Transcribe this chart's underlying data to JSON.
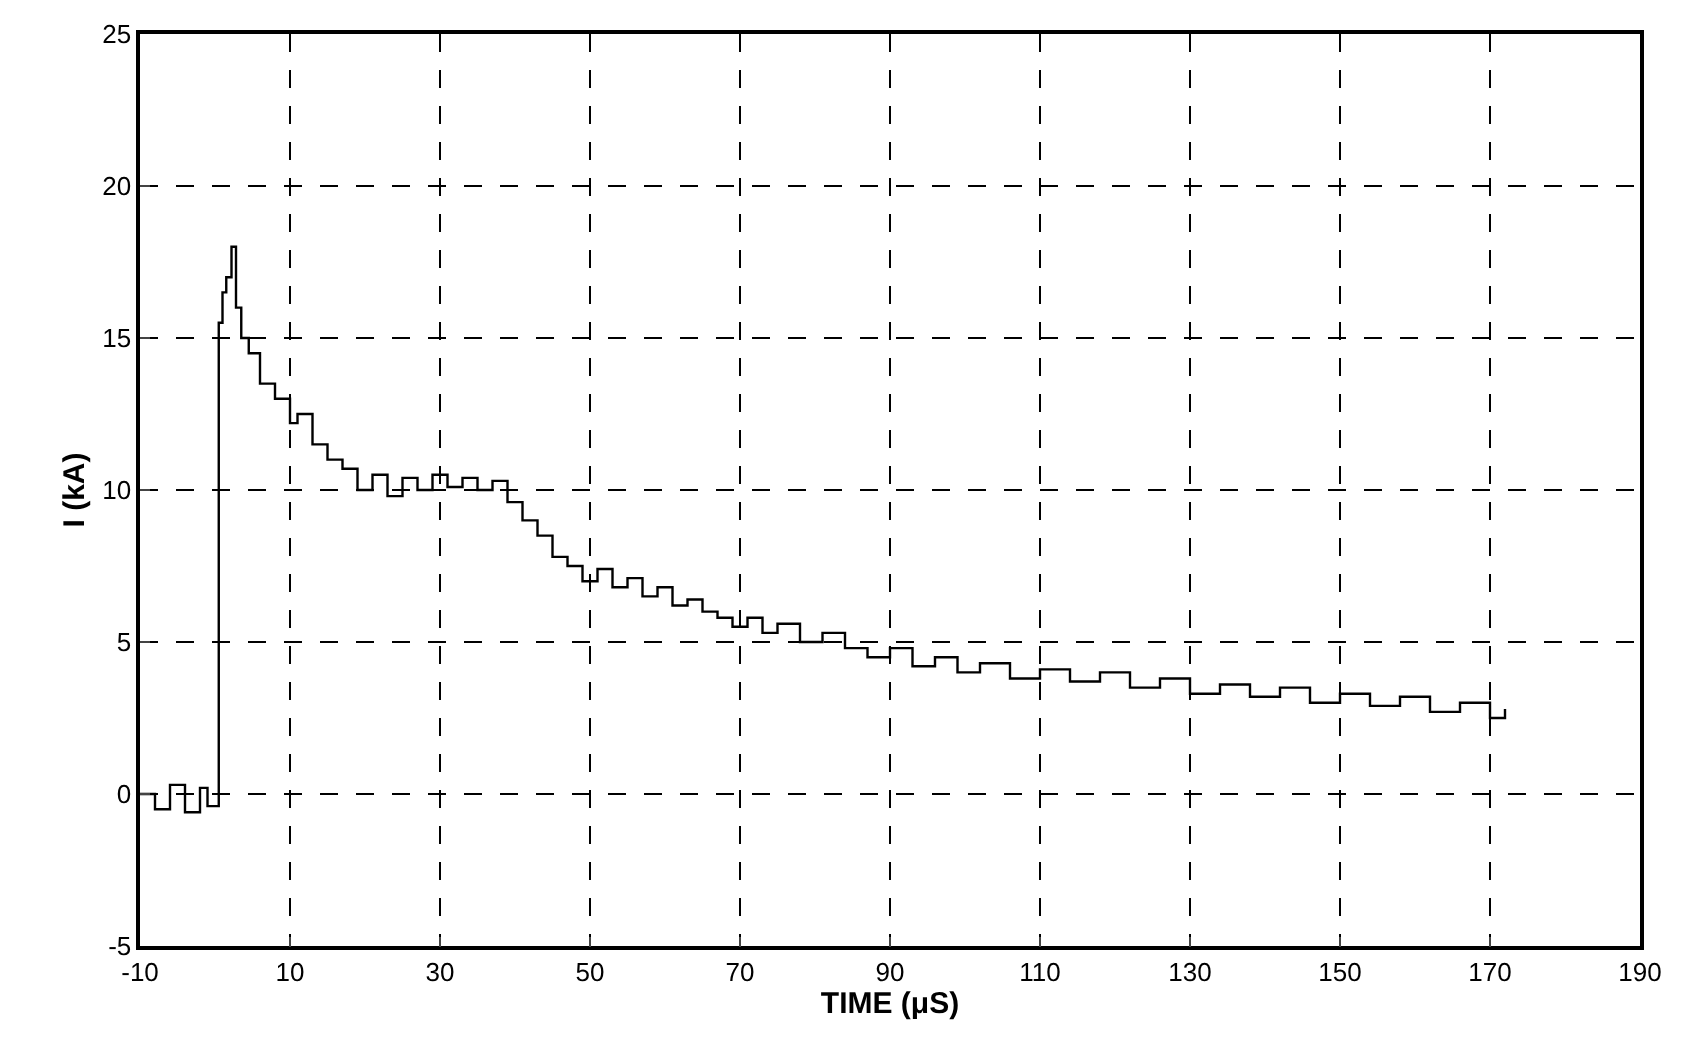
{
  "chart_data": {
    "type": "step",
    "xlabel": "TIME (μS)",
    "ylabel": "I (kA)",
    "xlim": [
      -10,
      190
    ],
    "xticks": [
      -10,
      10,
      30,
      50,
      70,
      90,
      110,
      130,
      150,
      170,
      190
    ],
    "ylim": [
      -5,
      25
    ],
    "yticks": [
      -5,
      0,
      5,
      10,
      15,
      20,
      25
    ],
    "grid": true,
    "line_style": "solid",
    "marker": "none",
    "series": [
      {
        "color": "#000000",
        "x": [
          -10,
          -8,
          -6,
          -4,
          -2,
          -1,
          0.5,
          1,
          1.5,
          2.2,
          2.8,
          3.5,
          4.5,
          6,
          8,
          10,
          11,
          13,
          15,
          17,
          19,
          21,
          23,
          25,
          27,
          29,
          31,
          33,
          35,
          37,
          39,
          41,
          43,
          45,
          47,
          49,
          51,
          53,
          55,
          57,
          59,
          61,
          63,
          65,
          67,
          69,
          71,
          73,
          75,
          78,
          81,
          84,
          87,
          90,
          93,
          96,
          99,
          102,
          106,
          110,
          114,
          118,
          122,
          126,
          130,
          134,
          138,
          142,
          146,
          150,
          154,
          158,
          162,
          166,
          170,
          172
        ],
        "values": [
          0,
          -0.5,
          0.3,
          -0.6,
          0.2,
          -0.4,
          15.5,
          16.5,
          17,
          18,
          16,
          15,
          14.5,
          13.5,
          13,
          12.2,
          12.5,
          11.5,
          11,
          10.7,
          10,
          10.5,
          9.8,
          10.4,
          10,
          10.5,
          10.1,
          10.4,
          10,
          10.3,
          9.6,
          9,
          8.5,
          7.8,
          7.5,
          7,
          7.4,
          6.8,
          7.1,
          6.5,
          6.8,
          6.2,
          6.4,
          6,
          5.8,
          5.5,
          5.8,
          5.3,
          5.6,
          5,
          5.3,
          4.8,
          4.5,
          4.8,
          4.2,
          4.5,
          4,
          4.3,
          3.8,
          4.1,
          3.7,
          4,
          3.5,
          3.8,
          3.3,
          3.6,
          3.2,
          3.5,
          3,
          3.3,
          2.9,
          3.2,
          2.7,
          3,
          2.5,
          2.8
        ]
      }
    ]
  }
}
